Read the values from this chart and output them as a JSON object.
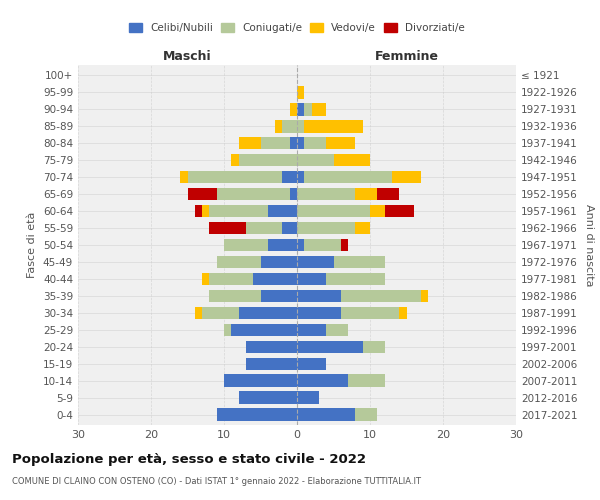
{
  "age_groups": [
    "0-4",
    "5-9",
    "10-14",
    "15-19",
    "20-24",
    "25-29",
    "30-34",
    "35-39",
    "40-44",
    "45-49",
    "50-54",
    "55-59",
    "60-64",
    "65-69",
    "70-74",
    "75-79",
    "80-84",
    "85-89",
    "90-94",
    "95-99",
    "100+"
  ],
  "birth_years": [
    "2017-2021",
    "2012-2016",
    "2007-2011",
    "2002-2006",
    "1997-2001",
    "1992-1996",
    "1987-1991",
    "1982-1986",
    "1977-1981",
    "1972-1976",
    "1967-1971",
    "1962-1966",
    "1957-1961",
    "1952-1956",
    "1947-1951",
    "1942-1946",
    "1937-1941",
    "1932-1936",
    "1927-1931",
    "1922-1926",
    "≤ 1921"
  ],
  "maschi": {
    "celibi": [
      11,
      8,
      10,
      7,
      7,
      9,
      8,
      5,
      6,
      5,
      4,
      2,
      4,
      1,
      2,
      0,
      1,
      0,
      0,
      0,
      0
    ],
    "coniugati": [
      0,
      0,
      0,
      0,
      0,
      1,
      5,
      7,
      6,
      6,
      6,
      5,
      8,
      10,
      13,
      8,
      4,
      2,
      0,
      0,
      0
    ],
    "vedovi": [
      0,
      0,
      0,
      0,
      0,
      0,
      1,
      0,
      1,
      0,
      0,
      0,
      1,
      0,
      1,
      1,
      3,
      1,
      1,
      0,
      0
    ],
    "divorziati": [
      0,
      0,
      0,
      0,
      0,
      0,
      0,
      0,
      0,
      0,
      0,
      5,
      1,
      4,
      0,
      0,
      0,
      0,
      0,
      0,
      0
    ]
  },
  "femmine": {
    "nubili": [
      8,
      3,
      7,
      4,
      9,
      4,
      6,
      6,
      4,
      5,
      1,
      0,
      0,
      0,
      1,
      0,
      1,
      0,
      1,
      0,
      0
    ],
    "coniugate": [
      3,
      0,
      5,
      0,
      3,
      3,
      8,
      11,
      8,
      7,
      5,
      8,
      10,
      8,
      12,
      5,
      3,
      1,
      1,
      0,
      0
    ],
    "vedove": [
      0,
      0,
      0,
      0,
      0,
      0,
      1,
      1,
      0,
      0,
      0,
      2,
      2,
      3,
      4,
      5,
      4,
      8,
      2,
      1,
      0
    ],
    "divorziate": [
      0,
      0,
      0,
      0,
      0,
      0,
      0,
      0,
      0,
      0,
      1,
      0,
      4,
      3,
      0,
      0,
      0,
      0,
      0,
      0,
      0
    ]
  },
  "colors": {
    "celibi_nubili": "#4472c4",
    "coniugati": "#b5c99a",
    "vedovi": "#ffc000",
    "divorziati": "#c00000"
  },
  "xlim": 30,
  "title": "Popolazione per età, sesso e stato civile - 2022",
  "subtitle": "COMUNE DI CLAINO CON OSTENO (CO) - Dati ISTAT 1° gennaio 2022 - Elaborazione TUTTITALIA.IT",
  "ylabel_left": "Fasce di età",
  "ylabel_right": "Anni di nascita",
  "xlabel_left": "Maschi",
  "xlabel_right": "Femmine",
  "bg_color": "#ffffff",
  "grid_color": "#cccccc",
  "bar_height": 0.75
}
